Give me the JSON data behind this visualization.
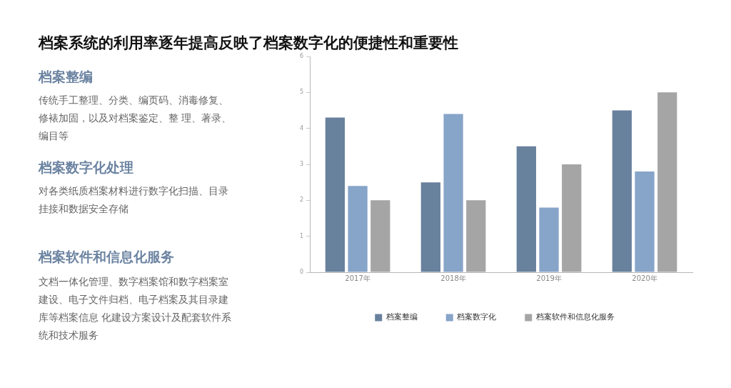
{
  "chart_data": {
    "type": "bar",
    "title": "档案系统的利用率逐年提高反映了档案数字化的便捷性和重要性",
    "categories": [
      "2017年",
      "2018年",
      "2019年",
      "2020年"
    ],
    "series": [
      {
        "name": "档案整编",
        "color": "#68819d",
        "values": [
          4.3,
          2.5,
          3.5,
          4.5
        ]
      },
      {
        "name": "档案数字化",
        "color": "#87a4c9",
        "values": [
          2.4,
          4.4,
          1.8,
          2.8
        ]
      },
      {
        "name": "档案软件和信息化服务",
        "color": "#a5a5a5",
        "values": [
          2.0,
          2.0,
          3.0,
          5.0
        ]
      }
    ],
    "ylim": [
      0,
      6
    ],
    "yticks": [
      0,
      1,
      2,
      3,
      4,
      5,
      6
    ],
    "legend": "bottom",
    "annotations": [
      "档案整编",
      "传统手工整理、分类、编页码、消毒修复、修裱加固，以及对档案鉴定、整 理、著录、编目等",
      "档案数字化处理",
      "对各类纸质档案材料进行数字化扫描、目录挂接和数据安全存储",
      "档案软件和信息化服务",
      "文档一体化管理、数字档案馆和数字档案室建设、电子文件归档、电子档案及其目录建库等档案信息 化建设方案设计及配套软件系统和技术服务"
    ]
  }
}
